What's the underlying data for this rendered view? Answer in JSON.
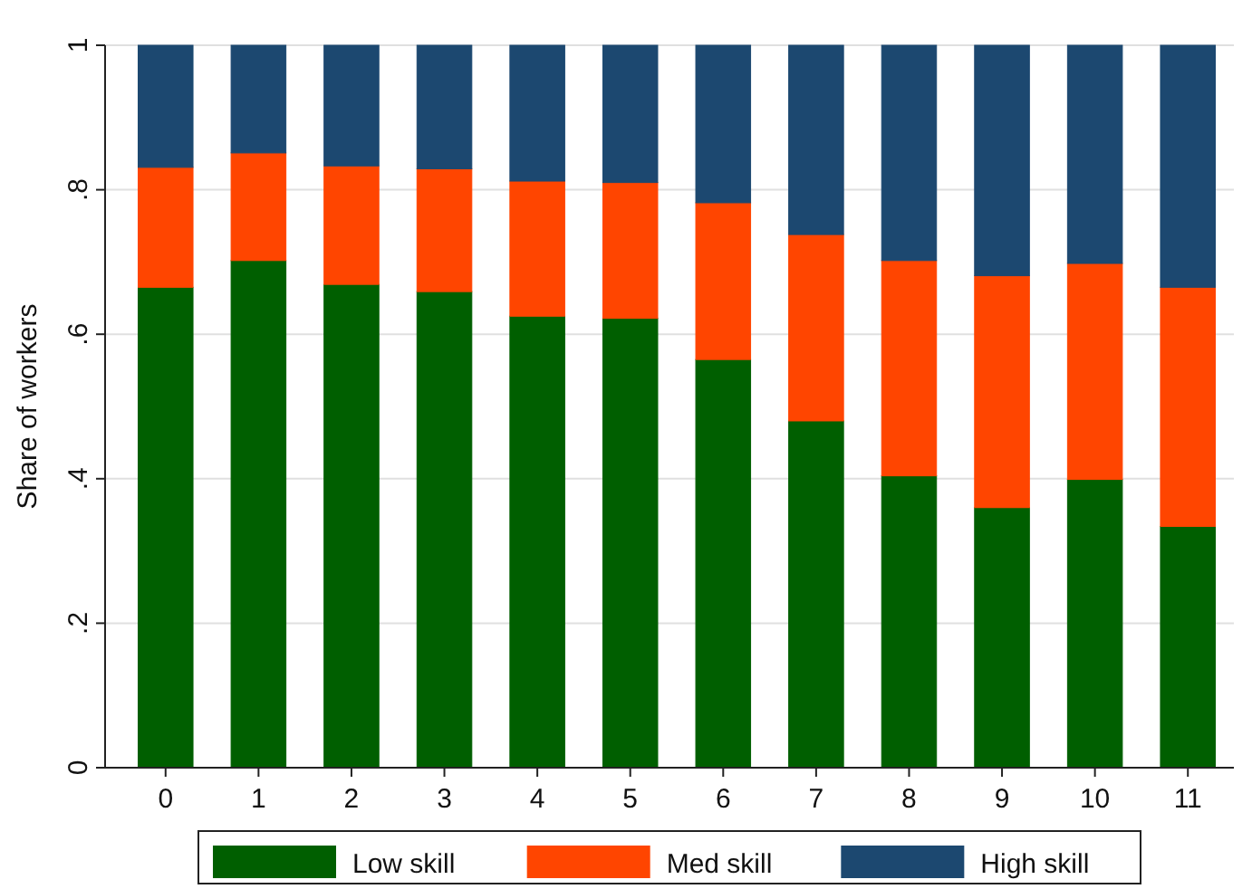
{
  "chart_data": {
    "type": "bar",
    "stacked": true,
    "ylabel": "Share of workers",
    "categories": [
      "0",
      "1",
      "2",
      "3",
      "4",
      "5",
      "6",
      "7",
      "8",
      "9",
      "10",
      "11"
    ],
    "series": [
      {
        "name": "Low skill",
        "color": "#005f00",
        "values": [
          0.665,
          0.702,
          0.669,
          0.659,
          0.625,
          0.622,
          0.565,
          0.48,
          0.404,
          0.36,
          0.399,
          0.334
        ]
      },
      {
        "name": "Med skill",
        "color": "#ff4500",
        "values": [
          0.166,
          0.149,
          0.164,
          0.17,
          0.187,
          0.188,
          0.217,
          0.258,
          0.298,
          0.321,
          0.299,
          0.331
        ]
      },
      {
        "name": "High skill",
        "color": "#1c4870",
        "values": [
          0.169,
          0.149,
          0.167,
          0.171,
          0.188,
          0.19,
          0.218,
          0.262,
          0.298,
          0.319,
          0.302,
          0.335
        ]
      }
    ],
    "ylim": [
      0,
      1
    ],
    "yticks": [
      0,
      {
        "value": 0.2,
        "label": ".2"
      },
      {
        "value": 0.4,
        "label": ".4"
      },
      {
        "value": 0.6,
        "label": ".6"
      },
      {
        "value": 0.8,
        "label": ".8"
      },
      1
    ],
    "grid": "y",
    "legend": "bottom"
  }
}
